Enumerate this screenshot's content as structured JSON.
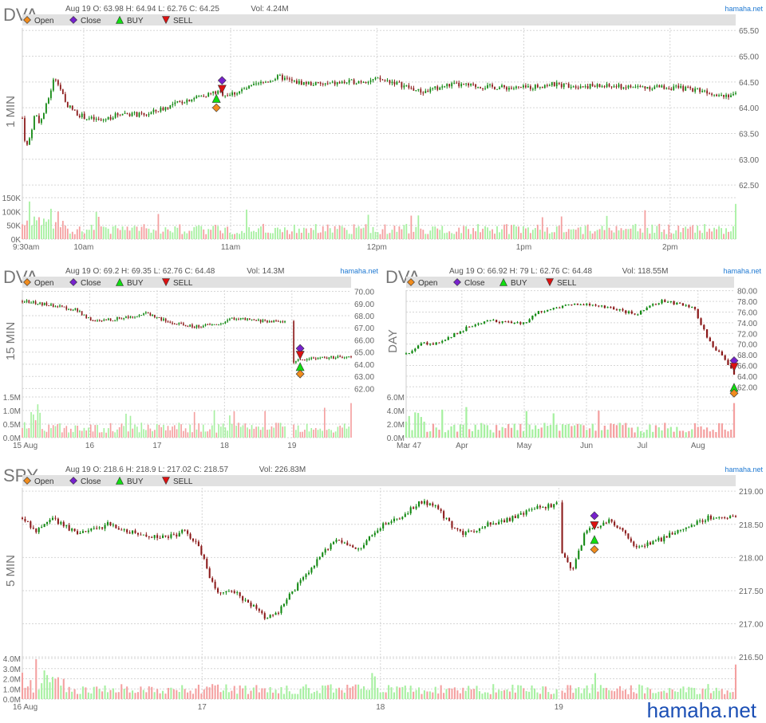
{
  "watermark": "hamaha.net",
  "legend": {
    "open": "Open",
    "close": "Close",
    "buy": "BUY",
    "sell": "SELL"
  },
  "colors": {
    "up": "#118811",
    "down": "#8b1a1a",
    "vol_up": "#a6f0a0",
    "vol_down": "#f4a0a0",
    "open_marker": "#f08c1e",
    "close_marker": "#7722cc",
    "buy_marker": "#11dd11",
    "sell_marker": "#dd1111",
    "legend_bg": "#e1e1e1",
    "grid": "#d6d6d6",
    "axis_text": "#666666",
    "brand": "#1e78d2"
  },
  "chart_data": [
    {
      "id": "dva-1min",
      "type": "candlestick",
      "symbol": "DVA",
      "timeframe_label": "1 MIN",
      "header": {
        "date": "Aug 19",
        "o": "63.98",
        "h": "64.94",
        "l": "62.76",
        "c": "64.25",
        "vol": "4.24M"
      },
      "header_text": "Aug 19 O: 63.98 H: 64.94 L: 62.76 C: 64.25",
      "vol_text": "Vol: 4.24M",
      "brand": "hamaha.net",
      "ylim": [
        62.3,
        65.55
      ],
      "yticks": [
        "62.50",
        "63.00",
        "63.50",
        "64.00",
        "64.50",
        "65.00",
        "65.50"
      ],
      "vol_max": 150000,
      "vticks": [
        "0K",
        "50K",
        "100K",
        "150K"
      ],
      "xlabels": [
        {
          "label": "9:30am",
          "pos": 0
        },
        {
          "label": "10am",
          "pos": 0.086
        },
        {
          "label": "11am",
          "pos": 0.292
        },
        {
          "label": "12pm",
          "pos": 0.497
        },
        {
          "label": "1pm",
          "pos": 0.703
        },
        {
          "label": "2pm",
          "pos": 0.908
        }
      ],
      "path": [
        [
          0,
          63.8
        ],
        [
          0.005,
          63.2
        ],
        [
          0.01,
          63.4
        ],
        [
          0.018,
          63.9
        ],
        [
          0.025,
          63.7
        ],
        [
          0.035,
          64.1
        ],
        [
          0.045,
          64.6
        ],
        [
          0.05,
          64.5
        ],
        [
          0.06,
          64.1
        ],
        [
          0.075,
          63.9
        ],
        [
          0.09,
          63.8
        ],
        [
          0.11,
          63.75
        ],
        [
          0.14,
          63.9
        ],
        [
          0.17,
          63.85
        ],
        [
          0.2,
          64.0
        ],
        [
          0.23,
          64.15
        ],
        [
          0.27,
          64.3
        ],
        [
          0.29,
          64.25
        ],
        [
          0.32,
          64.4
        ],
        [
          0.36,
          64.6
        ],
        [
          0.38,
          64.5
        ],
        [
          0.42,
          64.45
        ],
        [
          0.46,
          64.5
        ],
        [
          0.5,
          64.55
        ],
        [
          0.52,
          64.5
        ],
        [
          0.56,
          64.3
        ],
        [
          0.6,
          64.45
        ],
        [
          0.66,
          64.4
        ],
        [
          0.7,
          64.38
        ],
        [
          0.74,
          64.45
        ],
        [
          0.8,
          64.42
        ],
        [
          0.86,
          64.4
        ],
        [
          0.9,
          64.4
        ],
        [
          0.95,
          64.35
        ],
        [
          0.98,
          64.25
        ],
        [
          1.0,
          64.25
        ]
      ],
      "markers": [
        {
          "type": "close",
          "x": 0.28,
          "y": 64.53
        },
        {
          "type": "sell",
          "x": 0.28,
          "y": 64.36
        },
        {
          "type": "buy",
          "x": 0.272,
          "y": 64.18
        },
        {
          "type": "open",
          "x": 0.272,
          "y": 64.0
        }
      ]
    },
    {
      "id": "dva-15min",
      "type": "candlestick",
      "symbol": "DVA",
      "timeframe_label": "15 MIN",
      "header": {
        "date": "Aug 19",
        "o": "69.2",
        "h": "69.35",
        "l": "62.76",
        "c": "64.48",
        "vol": "14.3M"
      },
      "header_text": "Aug 19 O: 69.2 H: 69.35 L: 62.76 C: 64.48",
      "vol_text": "Vol: 14.3M",
      "brand": "hamaha.net",
      "ylim": [
        61.7,
        70.1
      ],
      "yticks": [
        "62.00",
        "63.00",
        "64.00",
        "65.00",
        "66.00",
        "67.00",
        "68.00",
        "69.00",
        "70.00"
      ],
      "vol_max": 1500000,
      "vticks": [
        "0.0M",
        "0.5M",
        "1.0M",
        "1.5M"
      ],
      "xlabels": [
        {
          "label": "15 Aug",
          "pos": 0
        },
        {
          "label": "16",
          "pos": 0.205
        },
        {
          "label": "17",
          "pos": 0.41
        },
        {
          "label": "18",
          "pos": 0.615
        },
        {
          "label": "19",
          "pos": 0.82
        }
      ],
      "path": [
        [
          0,
          69.2
        ],
        [
          0.08,
          68.9
        ],
        [
          0.16,
          68.5
        ],
        [
          0.22,
          67.5
        ],
        [
          0.3,
          67.8
        ],
        [
          0.38,
          68.2
        ],
        [
          0.45,
          67.4
        ],
        [
          0.52,
          67.1
        ],
        [
          0.6,
          67.3
        ],
        [
          0.64,
          67.8
        ],
        [
          0.7,
          67.6
        ],
        [
          0.8,
          67.5
        ]
      ],
      "gap_path": [
        [
          0.82,
          64.2
        ],
        [
          0.84,
          64.3
        ],
        [
          0.88,
          64.5
        ],
        [
          0.93,
          64.55
        ],
        [
          1.0,
          64.55
        ]
      ],
      "markers": [
        {
          "type": "close",
          "x": 0.845,
          "y": 65.3
        },
        {
          "type": "sell",
          "x": 0.845,
          "y": 64.75
        },
        {
          "type": "buy",
          "x": 0.845,
          "y": 63.8
        },
        {
          "type": "open",
          "x": 0.845,
          "y": 63.2
        }
      ]
    },
    {
      "id": "dva-day",
      "type": "candlestick",
      "symbol": "DVA",
      "timeframe_label": "DAY",
      "header": {
        "date": "Aug 19",
        "o": "66.92",
        "h": "79",
        "l": "62.76",
        "c": "64.48",
        "vol": "118.55M"
      },
      "header_text": "Aug 19 O: 66.92 H: 79 L: 62.76 C: 64.48",
      "vol_text": "Vol: 118.55M",
      "brand": "hamaha.net",
      "ylim": [
        61,
        80.1
      ],
      "yticks": [
        "62.00",
        "64.00",
        "66.00",
        "68.00",
        "70.00",
        "72.00",
        "74.00",
        "76.00",
        "78.00",
        "80.00"
      ],
      "vol_max": 6000000,
      "vticks": [
        "0.0M",
        "2.0M",
        "4.0M",
        "6.0M"
      ],
      "xlabels": [
        {
          "label": "Mar 47",
          "pos": 0.0
        },
        {
          "label": "Apr",
          "pos": 0.17
        },
        {
          "label": "May",
          "pos": 0.36
        },
        {
          "label": "Jun",
          "pos": 0.55
        },
        {
          "label": "Jul",
          "pos": 0.72
        },
        {
          "label": "Aug",
          "pos": 0.89
        }
      ],
      "path": [
        [
          0,
          68.2
        ],
        [
          0.05,
          70.2
        ],
        [
          0.1,
          70.0
        ],
        [
          0.15,
          72.0
        ],
        [
          0.2,
          73.5
        ],
        [
          0.26,
          74.5
        ],
        [
          0.32,
          74.0
        ],
        [
          0.36,
          73.8
        ],
        [
          0.4,
          76.0
        ],
        [
          0.46,
          77.0
        ],
        [
          0.52,
          77.5
        ],
        [
          0.58,
          77.2
        ],
        [
          0.64,
          76.5
        ],
        [
          0.7,
          75.5
        ],
        [
          0.74,
          77.0
        ],
        [
          0.78,
          78.0
        ],
        [
          0.84,
          77.5
        ],
        [
          0.88,
          76.5
        ],
        [
          0.9,
          73.5
        ],
        [
          0.93,
          70.0
        ],
        [
          0.96,
          68.0
        ],
        [
          0.98,
          66.5
        ],
        [
          1.0,
          64.5
        ]
      ],
      "markers": [
        {
          "type": "close",
          "x": 1.0,
          "y": 66.9
        },
        {
          "type": "sell",
          "x": 1.0,
          "y": 65.7
        },
        {
          "type": "buy",
          "x": 1.0,
          "y": 61.9
        },
        {
          "type": "open",
          "x": 1.0,
          "y": 60.8
        }
      ]
    },
    {
      "id": "spy-5min",
      "type": "candlestick",
      "symbol": "SPY",
      "timeframe_label": "5 MIN",
      "header": {
        "date": "Aug 19",
        "o": "218.6",
        "h": "218.9",
        "l": "217.02",
        "c": "218.57",
        "vol": "226.83M"
      },
      "header_text": "Aug 19 O: 218.6 H: 218.9 L: 217.02 C: 218.57",
      "vol_text": "Vol: 226.83M",
      "brand": "hamaha.net",
      "ylim": [
        216.55,
        219.05
      ],
      "yticks": [
        "216.50",
        "217.00",
        "217.50",
        "218.00",
        "218.50",
        "219.00"
      ],
      "vol_max": 4000000,
      "vticks": [
        "0.0M",
        "1.0M",
        "2.0M",
        "3.0M",
        "4.0M"
      ],
      "xlabels": [
        {
          "label": "16 Aug",
          "pos": 0
        },
        {
          "label": "17",
          "pos": 0.252
        },
        {
          "label": "18",
          "pos": 0.502
        },
        {
          "label": "19",
          "pos": 0.752
        }
      ],
      "path": [
        [
          0,
          218.6
        ],
        [
          0.02,
          218.4
        ],
        [
          0.04,
          218.6
        ],
        [
          0.08,
          218.35
        ],
        [
          0.12,
          218.5
        ],
        [
          0.16,
          218.35
        ],
        [
          0.2,
          218.3
        ],
        [
          0.23,
          218.4
        ],
        [
          0.25,
          218.1
        ],
        [
          0.27,
          217.5
        ],
        [
          0.3,
          217.45
        ],
        [
          0.32,
          217.3
        ],
        [
          0.34,
          217.1
        ],
        [
          0.36,
          217.2
        ],
        [
          0.38,
          217.5
        ],
        [
          0.41,
          217.9
        ],
        [
          0.44,
          218.3
        ],
        [
          0.47,
          218.1
        ],
        [
          0.5,
          218.45
        ],
        [
          0.53,
          218.6
        ],
        [
          0.56,
          218.85
        ],
        [
          0.58,
          218.75
        ],
        [
          0.6,
          218.5
        ],
        [
          0.62,
          218.35
        ],
        [
          0.65,
          218.5
        ],
        [
          0.69,
          218.6
        ],
        [
          0.72,
          218.75
        ],
        [
          0.75,
          218.8
        ]
      ],
      "gap_path": [
        [
          0.755,
          218.1
        ],
        [
          0.77,
          217.8
        ],
        [
          0.79,
          218.4
        ],
        [
          0.82,
          218.55
        ],
        [
          0.84,
          218.45
        ],
        [
          0.86,
          218.15
        ],
        [
          0.88,
          218.2
        ],
        [
          0.92,
          218.4
        ],
        [
          0.96,
          218.6
        ],
        [
          1.0,
          218.62
        ]
      ],
      "markers": [
        {
          "type": "close",
          "x": 0.802,
          "y": 218.63
        },
        {
          "type": "sell",
          "x": 0.802,
          "y": 218.48
        },
        {
          "type": "buy",
          "x": 0.802,
          "y": 218.27
        },
        {
          "type": "open",
          "x": 0.802,
          "y": 218.12
        }
      ]
    }
  ]
}
